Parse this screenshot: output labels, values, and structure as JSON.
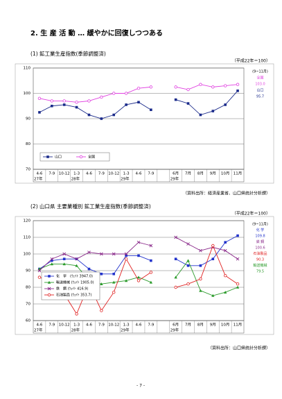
{
  "title": "2. 生 産 活 動 … 緩やかに回復しつつある",
  "page_number": "- 7 -",
  "chart_data": [
    {
      "type": "line",
      "title": "(1) 鉱工業生産指数(季節調整済)",
      "unit_note": "（平成22年＝100）",
      "source": "（資料出所：経済産業省、山口県統計分析課）",
      "categories": [
        "4-6",
        "7-9",
        "10-12",
        "1-3",
        "4-6",
        "7-9",
        "10-12",
        "1-3",
        "4-6",
        "7-9",
        null,
        "6月",
        "7月",
        "8月",
        "9月",
        "10月",
        "11月"
      ],
      "years": [
        "27年",
        null,
        null,
        "28年",
        null,
        null,
        null,
        "29年",
        null,
        null,
        null,
        "29年",
        null,
        null,
        null,
        null,
        null
      ],
      "ylim": [
        70,
        110
      ],
      "yticks": [
        70,
        80,
        90,
        100,
        110
      ],
      "grid": true,
      "series": [
        {
          "name": "山口",
          "color": "#1a2a8a",
          "marker": "square",
          "values": [
            92.5,
            95,
            95.5,
            94.5,
            91.5,
            90,
            91.5,
            95.5,
            96.5,
            93.5,
            null,
            97.5,
            96,
            91.5,
            93,
            95.5,
            101
          ]
        },
        {
          "name": "全国",
          "color": "#e040e0",
          "marker": "circle",
          "values": [
            98,
            97,
            97,
            96.5,
            97,
            98.5,
            100,
            100,
            102,
            102.5,
            null,
            102.5,
            101.5,
            103.5,
            102.5,
            103,
            103.5
          ]
        }
      ],
      "annotations": [
        {
          "text": "(9~11月)",
          "color": "#000000"
        },
        {
          "text": "全国",
          "color": "#e040e0"
        },
        {
          "text": "103.0",
          "color": "#e040e0"
        },
        {
          "text": "山口",
          "color": "#1a2a8a"
        },
        {
          "text": "95.7",
          "color": "#1a2a8a"
        }
      ]
    },
    {
      "type": "line",
      "title": "(2) 山口県 主要業種別 鉱工業生産指数(季節調整済)",
      "unit_note": "（平成22年＝100）",
      "source": "（資料出所：山口県統計分析課）",
      "categories": [
        "4-6",
        "7-9",
        "10-12",
        "1-3",
        "4-6",
        "7-9",
        "10-12",
        "1-3",
        "4-6",
        "7-9",
        null,
        "6月",
        "7月",
        "8月",
        "9月",
        "10月",
        "11月"
      ],
      "years": [
        "27年",
        null,
        null,
        "28年",
        null,
        null,
        null,
        "29年",
        null,
        null,
        null,
        "29年",
        null,
        null,
        null,
        null,
        null
      ],
      "ylim": [
        60,
        120
      ],
      "yticks": [
        60,
        70,
        80,
        90,
        100,
        110,
        120
      ],
      "grid": true,
      "series": [
        {
          "name": "化　学　(ｳｪｲﾄ 3947.0)",
          "color": "#2233cc",
          "marker": "square",
          "values": [
            91,
            96,
            97,
            97,
            91,
            88,
            88,
            99,
            99,
            96,
            null,
            97,
            93,
            93,
            97,
            107,
            111
          ]
        },
        {
          "name": "輸送機械 (ｳｪｲﾄ 1905.0)",
          "color": "#2a9a2a",
          "marker": "triangle",
          "values": [
            91,
            94,
            94,
            93,
            84,
            82,
            83,
            84,
            86,
            83,
            null,
            86,
            96,
            78,
            75,
            77,
            80
          ]
        },
        {
          "name": "鉄　鋼 (ｳｪｲﾄ 416.9)",
          "color": "#8a2a8a",
          "marker": "cross",
          "values": [
            90,
            97,
            100,
            97,
            101,
            100,
            100,
            100,
            107,
            105,
            null,
            110,
            106,
            102,
            104,
            102,
            97
          ]
        },
        {
          "name": "石油製品 (ｳｪｲﾄ 353.7)",
          "color": "#e02020",
          "marker": "circle",
          "values": [
            86,
            83,
            76,
            64,
            82,
            66,
            77,
            97,
            84,
            89,
            null,
            80,
            82,
            85,
            105,
            87,
            82
          ]
        }
      ],
      "annotations": [
        {
          "text": "(9~11月)",
          "color": "#000000"
        },
        {
          "text": "化 学",
          "color": "#2233cc"
        },
        {
          "text": "109.8",
          "color": "#2233cc"
        },
        {
          "text": "鉄 鋼",
          "color": "#8a2a8a"
        },
        {
          "text": "100.6",
          "color": "#8a2a8a"
        },
        {
          "text": "石油製品",
          "color": "#e02020"
        },
        {
          "text": "90.3",
          "color": "#e02020"
        },
        {
          "text": "輸送機械",
          "color": "#2a9a2a"
        },
        {
          "text": "79.5",
          "color": "#2a9a2a"
        }
      ]
    }
  ]
}
